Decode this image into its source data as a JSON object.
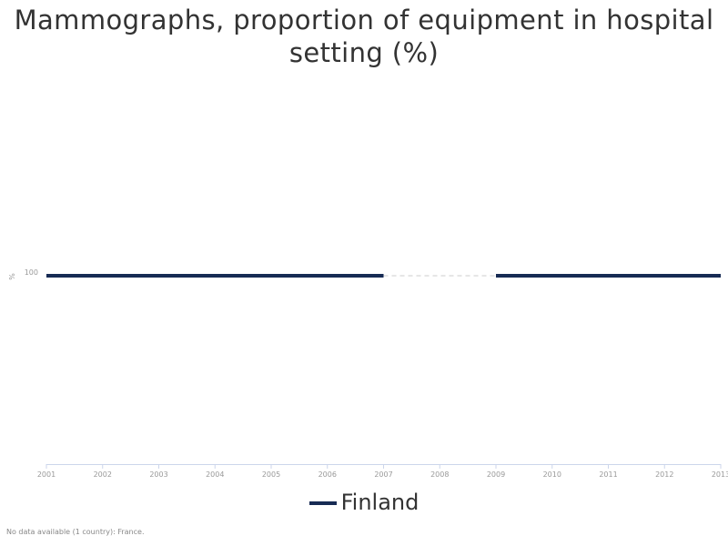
{
  "chart_data": {
    "type": "line",
    "title": "Mammographs, proportion of equipment in hospital setting (%)",
    "ylabel": "%",
    "x": [
      "2001",
      "2002",
      "2003",
      "2004",
      "2005",
      "2006",
      "2007",
      "2008",
      "2009",
      "2010",
      "2011",
      "2012",
      "2013"
    ],
    "y_ticks": [
      "100"
    ],
    "ylim": [
      0,
      200
    ],
    "series": [
      {
        "name": "Finland",
        "color": "#172b54",
        "values": [
          100,
          100,
          100,
          100,
          100,
          100,
          100,
          null,
          100,
          100,
          100,
          100,
          100
        ]
      }
    ],
    "gap_style": "dashed",
    "grid": false,
    "legend_position": "bottom",
    "footnote": "No data available (1 country): France."
  }
}
